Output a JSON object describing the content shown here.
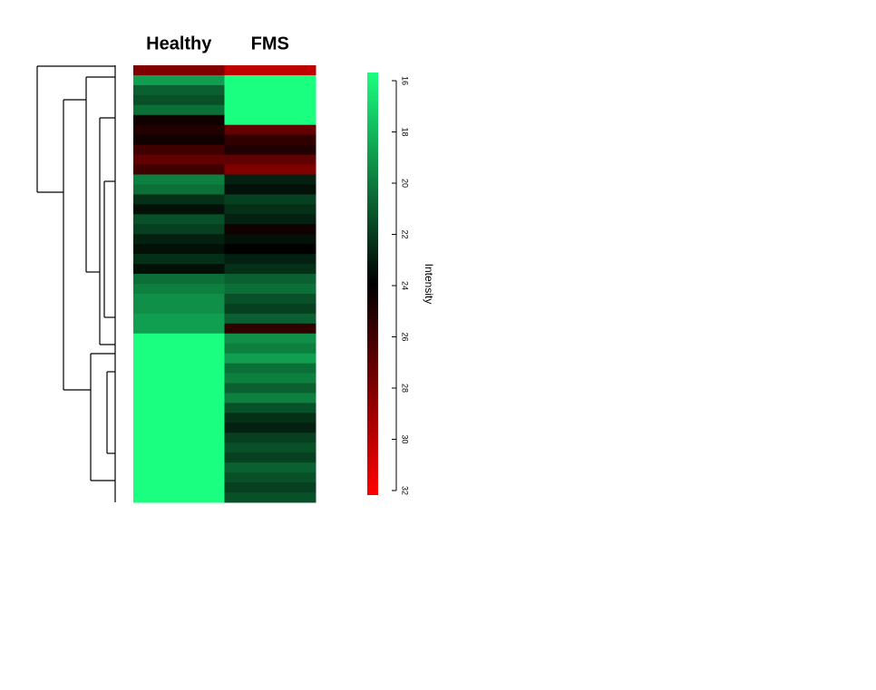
{
  "chart_data": {
    "type": "heatmap",
    "columns": [
      "Healthy",
      "FMS"
    ],
    "values": [
      [
        28,
        30
      ],
      [
        19,
        16
      ],
      [
        21,
        16
      ],
      [
        21.5,
        16
      ],
      [
        20.5,
        16
      ],
      [
        24.5,
        16
      ],
      [
        25,
        27
      ],
      [
        24.5,
        25.5
      ],
      [
        26,
        25
      ],
      [
        27,
        27
      ],
      [
        26,
        28
      ],
      [
        20,
        23
      ],
      [
        20.5,
        23.5
      ],
      [
        22.5,
        22
      ],
      [
        23.5,
        22.5
      ],
      [
        21.5,
        23
      ],
      [
        22,
        24.5
      ],
      [
        23,
        23.5
      ],
      [
        23.5,
        24
      ],
      [
        22.5,
        23
      ],
      [
        23.5,
        22.5
      ],
      [
        20.5,
        21
      ],
      [
        20,
        20.5
      ],
      [
        19.5,
        21.5
      ],
      [
        19.5,
        22
      ],
      [
        19,
        21
      ],
      [
        19,
        25.5
      ],
      [
        16,
        19.5
      ],
      [
        16,
        20
      ],
      [
        16,
        19
      ],
      [
        16,
        20.5
      ],
      [
        16,
        20
      ],
      [
        16,
        21
      ],
      [
        16,
        20
      ],
      [
        16,
        21.5
      ],
      [
        16,
        22.5
      ],
      [
        16,
        23
      ],
      [
        16,
        22
      ],
      [
        16,
        21.5
      ],
      [
        16,
        22
      ],
      [
        16,
        21
      ],
      [
        16,
        21.5
      ],
      [
        16,
        22
      ],
      [
        16,
        21.5
      ]
    ],
    "colorbar_label": "Intensity",
    "zlim": [
      16,
      32
    ],
    "zticks": [
      16,
      18,
      20,
      22,
      24,
      26,
      28,
      30,
      32
    ],
    "colormap": [
      "#1aff80",
      "#000000",
      "#ff0000"
    ]
  }
}
